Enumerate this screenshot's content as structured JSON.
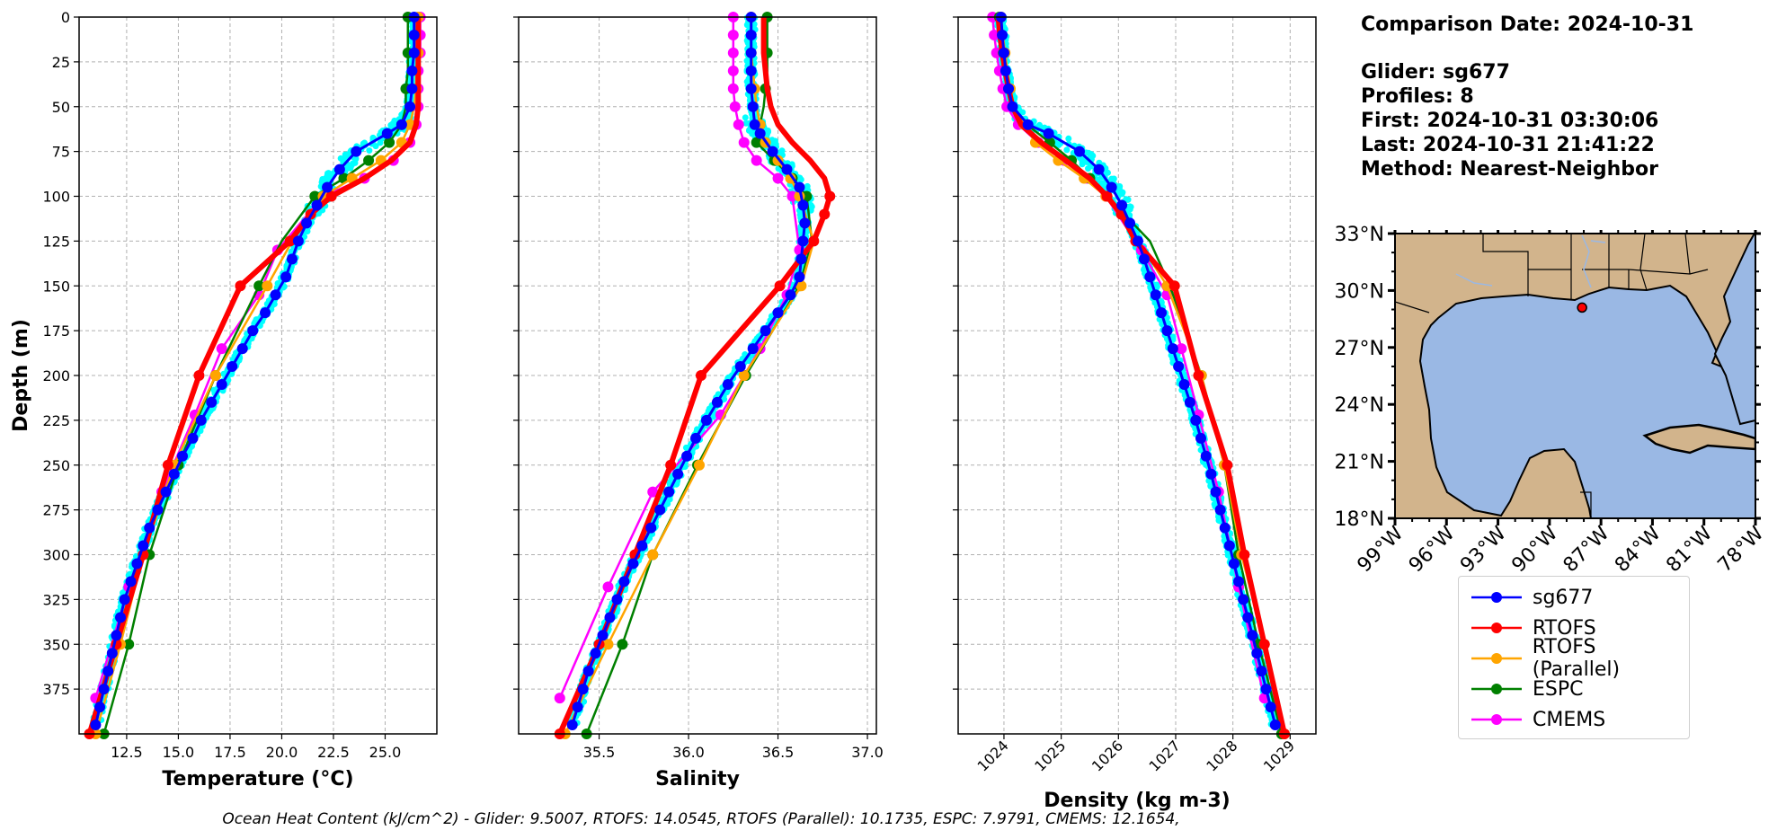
{
  "info": {
    "comparison_date": "Comparison Date: 2024-10-31",
    "glider": "Glider: sg677",
    "profiles": "Profiles: 8",
    "first": "First: 2024-10-31 03:30:06",
    "last": "Last: 2024-10-31 21:41:22",
    "method": "Method: Nearest-Neighbor"
  },
  "footer": "Ocean Heat Content (kJ/cm^2) - Glider: 9.5007,  RTOFS: 14.0545,  RTOFS (Parallel): 10.1735,  ESPC: 7.9791,  CMEMS: 12.1654,",
  "colors": {
    "glider": "#0000ff",
    "rtofs": "#ff0000",
    "parallel": "#ffa500",
    "espc": "#008000",
    "cmems": "#ff00ff",
    "raw": "#00ffff",
    "land": "#d2b48c",
    "ocean": "#9ab8e4"
  },
  "legend": [
    {
      "label": "sg677",
      "color": "#0000ff"
    },
    {
      "label": "RTOFS",
      "color": "#ff0000"
    },
    {
      "label": "RTOFS (Parallel)",
      "color": "#ffa500"
    },
    {
      "label": "ESPC",
      "color": "#008000"
    },
    {
      "label": "CMEMS",
      "color": "#ff00ff"
    }
  ],
  "chart_data": [
    {
      "type": "line",
      "xlabel": "Temperature (°C)",
      "ylabel": "Depth (m)",
      "xlim": [
        10.2,
        27.5
      ],
      "ylim": [
        400,
        0
      ],
      "xticks": [
        12.5,
        15.0,
        17.5,
        20.0,
        22.5,
        25.0
      ],
      "xtick_labels": [
        "12.5",
        "15.0",
        "17.5",
        "20.0",
        "22.5",
        "25.0"
      ],
      "yticks": [
        0,
        25,
        50,
        75,
        100,
        125,
        150,
        175,
        200,
        225,
        250,
        275,
        300,
        325,
        350,
        375
      ],
      "grid": true,
      "series": [
        {
          "name": "sg677",
          "key": "glider",
          "depth": [
            0,
            10,
            20,
            30,
            40,
            50,
            60,
            65,
            75,
            85,
            95,
            105,
            115,
            125,
            135,
            145,
            155,
            165,
            175,
            185,
            195,
            205,
            215,
            225,
            235,
            245,
            255,
            265,
            275,
            285,
            295,
            305,
            315,
            325,
            335,
            345,
            355,
            365,
            375,
            385,
            395
          ],
          "values": [
            26.4,
            26.4,
            26.4,
            26.3,
            26.3,
            26.2,
            25.8,
            25.1,
            23.6,
            22.8,
            22.2,
            21.7,
            21.2,
            20.8,
            20.5,
            20.2,
            19.7,
            19.2,
            18.6,
            18.1,
            17.6,
            17.1,
            16.6,
            16.1,
            15.7,
            15.2,
            14.8,
            14.4,
            14.0,
            13.6,
            13.3,
            13.0,
            12.7,
            12.4,
            12.2,
            12.0,
            11.8,
            11.6,
            11.4,
            11.2,
            11.0
          ]
        },
        {
          "name": "RTOFS",
          "key": "rtofs",
          "depth": [
            0,
            10,
            20,
            30,
            40,
            50,
            60,
            70,
            80,
            90,
            100,
            110,
            125,
            150,
            200,
            250,
            300,
            350,
            400
          ],
          "values": [
            26.6,
            26.6,
            26.6,
            26.6,
            26.6,
            26.6,
            26.5,
            26.2,
            25.3,
            24.0,
            22.4,
            21.4,
            20.4,
            18.0,
            16.0,
            14.5,
            13.3,
            12.0,
            10.7
          ]
        },
        {
          "name": "RTOFS (Parallel)",
          "key": "parallel",
          "depth": [
            0,
            10,
            20,
            30,
            40,
            50,
            60,
            70,
            80,
            90,
            100,
            125,
            150,
            200,
            250,
            300,
            350,
            400
          ],
          "values": [
            26.6,
            26.6,
            26.6,
            26.5,
            26.5,
            26.4,
            26.2,
            25.8,
            24.8,
            23.4,
            22.0,
            20.5,
            19.3,
            16.8,
            14.8,
            13.3,
            12.2,
            11.0
          ]
        },
        {
          "name": "ESPC",
          "key": "espc",
          "depth": [
            0,
            10,
            20,
            30,
            40,
            50,
            60,
            70,
            80,
            90,
            100,
            125,
            150,
            200,
            250,
            300,
            350,
            400
          ],
          "values": [
            26.1,
            26.1,
            26.1,
            26.1,
            26.0,
            26.0,
            25.8,
            25.2,
            24.2,
            23.0,
            21.6,
            20.0,
            18.9,
            16.8,
            15.0,
            13.6,
            12.6,
            11.4
          ]
        },
        {
          "name": "CMEMS",
          "key": "cmems",
          "depth": [
            0,
            10,
            20,
            30,
            40,
            50,
            60,
            70,
            80,
            90,
            100,
            130,
            155,
            185,
            222,
            265,
            318,
            380
          ],
          "values": [
            26.7,
            26.7,
            26.7,
            26.6,
            26.6,
            26.6,
            26.5,
            26.2,
            25.4,
            24.0,
            22.0,
            19.8,
            18.9,
            17.1,
            15.8,
            14.2,
            12.6,
            11.0
          ]
        }
      ]
    },
    {
      "type": "line",
      "xlabel": "Salinity",
      "xlim": [
        35.05,
        37.05
      ],
      "ylim": [
        400,
        0
      ],
      "xticks": [
        35.5,
        36.0,
        36.5,
        37.0
      ],
      "xtick_labels": [
        "35.5",
        "36.0",
        "36.5",
        "37.0"
      ],
      "yticks": [
        0,
        25,
        50,
        75,
        100,
        125,
        150,
        175,
        200,
        225,
        250,
        275,
        300,
        325,
        350,
        375
      ],
      "grid": true,
      "series": [
        {
          "name": "sg677",
          "key": "glider",
          "depth": [
            0,
            10,
            20,
            30,
            40,
            50,
            60,
            65,
            75,
            85,
            95,
            105,
            115,
            125,
            135,
            145,
            155,
            165,
            175,
            185,
            195,
            205,
            215,
            225,
            235,
            245,
            255,
            265,
            275,
            285,
            295,
            305,
            315,
            325,
            335,
            345,
            355,
            365,
            375,
            385,
            395
          ],
          "values": [
            36.35,
            36.35,
            36.35,
            36.35,
            36.35,
            36.36,
            36.37,
            36.4,
            36.47,
            36.55,
            36.62,
            36.64,
            36.65,
            36.64,
            36.63,
            36.62,
            36.57,
            36.5,
            36.43,
            36.36,
            36.29,
            36.22,
            36.16,
            36.1,
            36.04,
            35.99,
            35.94,
            35.89,
            35.84,
            35.79,
            35.74,
            35.69,
            35.64,
            35.6,
            35.56,
            35.52,
            35.48,
            35.44,
            35.41,
            35.38,
            35.35
          ]
        },
        {
          "name": "RTOFS",
          "key": "rtofs",
          "depth": [
            0,
            10,
            20,
            30,
            40,
            50,
            60,
            70,
            80,
            90,
            100,
            110,
            125,
            150,
            200,
            250,
            300,
            350,
            400
          ],
          "values": [
            36.42,
            36.42,
            36.42,
            36.43,
            36.44,
            36.46,
            36.5,
            36.58,
            36.68,
            36.76,
            36.79,
            36.76,
            36.7,
            36.51,
            36.07,
            35.9,
            35.7,
            35.5,
            35.28
          ]
        },
        {
          "name": "RTOFS (Parallel)",
          "key": "parallel",
          "depth": [
            0,
            10,
            20,
            30,
            40,
            50,
            60,
            70,
            80,
            90,
            100,
            125,
            150,
            200,
            250,
            300,
            350,
            400
          ],
          "values": [
            36.35,
            36.35,
            36.35,
            36.36,
            36.37,
            36.38,
            36.4,
            36.43,
            36.5,
            36.57,
            36.62,
            36.7,
            36.63,
            36.31,
            36.06,
            35.8,
            35.55,
            35.31
          ]
        },
        {
          "name": "ESPC",
          "key": "espc",
          "depth": [
            0,
            10,
            20,
            30,
            40,
            50,
            60,
            70,
            80,
            90,
            100,
            125,
            150,
            200,
            250,
            300,
            350,
            400
          ],
          "values": [
            36.44,
            36.44,
            36.44,
            36.44,
            36.43,
            36.42,
            36.4,
            36.38,
            36.48,
            36.58,
            36.66,
            36.69,
            36.62,
            36.32,
            36.05,
            35.8,
            35.63,
            35.43
          ]
        },
        {
          "name": "CMEMS",
          "key": "cmems",
          "depth": [
            0,
            10,
            20,
            30,
            40,
            50,
            60,
            70,
            80,
            90,
            100,
            130,
            155,
            185,
            222,
            265,
            318,
            380
          ],
          "values": [
            36.25,
            36.25,
            36.25,
            36.25,
            36.25,
            36.26,
            36.28,
            36.31,
            36.38,
            36.5,
            36.58,
            36.62,
            36.55,
            36.4,
            36.18,
            35.8,
            35.55,
            35.28
          ]
        }
      ]
    },
    {
      "type": "line",
      "xlabel": "Density (kg m-3)",
      "xlim": [
        1023.2,
        1029.45
      ],
      "ylim": [
        400,
        0
      ],
      "xticks": [
        1024,
        1025,
        1026,
        1027,
        1028,
        1029
      ],
      "xtick_labels": [
        "1024",
        "1025",
        "1026",
        "1027",
        "1028",
        "1029"
      ],
      "yticks": [
        0,
        25,
        50,
        75,
        100,
        125,
        150,
        175,
        200,
        225,
        250,
        275,
        300,
        325,
        350,
        375
      ],
      "grid": true,
      "series": [
        {
          "name": "sg677",
          "key": "glider",
          "depth": [
            0,
            10,
            20,
            30,
            40,
            50,
            60,
            65,
            75,
            85,
            95,
            105,
            115,
            125,
            135,
            145,
            155,
            165,
            175,
            185,
            195,
            205,
            215,
            225,
            235,
            245,
            255,
            265,
            275,
            285,
            295,
            305,
            315,
            325,
            335,
            345,
            355,
            365,
            375,
            385,
            395
          ],
          "values": [
            1023.95,
            1023.97,
            1024.0,
            1024.03,
            1024.08,
            1024.15,
            1024.42,
            1024.78,
            1025.32,
            1025.66,
            1025.88,
            1026.06,
            1026.2,
            1026.34,
            1026.45,
            1026.55,
            1026.65,
            1026.75,
            1026.85,
            1026.95,
            1027.05,
            1027.15,
            1027.25,
            1027.35,
            1027.44,
            1027.53,
            1027.62,
            1027.7,
            1027.78,
            1027.86,
            1027.94,
            1028.02,
            1028.1,
            1028.18,
            1028.26,
            1028.34,
            1028.42,
            1028.5,
            1028.58,
            1028.66,
            1028.74
          ]
        },
        {
          "name": "RTOFS",
          "key": "rtofs",
          "depth": [
            0,
            10,
            20,
            30,
            40,
            50,
            60,
            70,
            80,
            90,
            100,
            110,
            125,
            150,
            200,
            250,
            300,
            350,
            400
          ],
          "values": [
            1023.9,
            1023.93,
            1023.97,
            1024.02,
            1024.08,
            1024.15,
            1024.3,
            1024.65,
            1025.08,
            1025.5,
            1025.8,
            1026.05,
            1026.3,
            1026.98,
            1027.4,
            1027.9,
            1028.2,
            1028.55,
            1028.9
          ]
        },
        {
          "name": "RTOFS (Parallel)",
          "key": "parallel",
          "depth": [
            0,
            10,
            20,
            30,
            40,
            50,
            60,
            70,
            80,
            90,
            100,
            125,
            150,
            200,
            250,
            300,
            350,
            400
          ],
          "values": [
            1023.95,
            1023.98,
            1024.02,
            1024.06,
            1024.11,
            1024.18,
            1024.35,
            1024.55,
            1024.95,
            1025.4,
            1025.78,
            1026.35,
            1026.85,
            1027.45,
            1027.85,
            1028.15,
            1028.55,
            1028.9
          ]
        },
        {
          "name": "ESPC",
          "key": "espc",
          "depth": [
            0,
            10,
            20,
            30,
            40,
            50,
            60,
            70,
            80,
            90,
            100,
            125,
            150,
            200,
            250,
            300,
            350,
            400
          ],
          "values": [
            1023.92,
            1023.95,
            1023.99,
            1024.03,
            1024.08,
            1024.15,
            1024.4,
            1024.8,
            1025.18,
            1025.5,
            1025.8,
            1026.55,
            1026.9,
            1027.45,
            1027.85,
            1028.1,
            1028.45,
            1028.85
          ]
        },
        {
          "name": "CMEMS",
          "key": "cmems",
          "depth": [
            0,
            10,
            20,
            30,
            40,
            50,
            60,
            70,
            80,
            90,
            100,
            130,
            155,
            185,
            222,
            265,
            318,
            380
          ],
          "values": [
            1023.8,
            1023.83,
            1023.87,
            1023.92,
            1023.98,
            1024.05,
            1024.25,
            1024.6,
            1025.05,
            1025.45,
            1025.78,
            1026.4,
            1026.85,
            1027.1,
            1027.4,
            1027.75,
            1028.1,
            1028.55
          ]
        }
      ]
    }
  ],
  "map": {
    "lon_ticks": [
      "99°W",
      "96°W",
      "93°W",
      "90°W",
      "87°W",
      "84°W",
      "81°W",
      "78°W"
    ],
    "lat_ticks": [
      "33°N",
      "30°N",
      "27°N",
      "24°N",
      "21°N",
      "18°N"
    ],
    "lon_range": [
      -99,
      -78
    ],
    "lat_range": [
      18,
      33
    ],
    "glider_location": {
      "lon": -88.1,
      "lat": 29.1
    }
  }
}
